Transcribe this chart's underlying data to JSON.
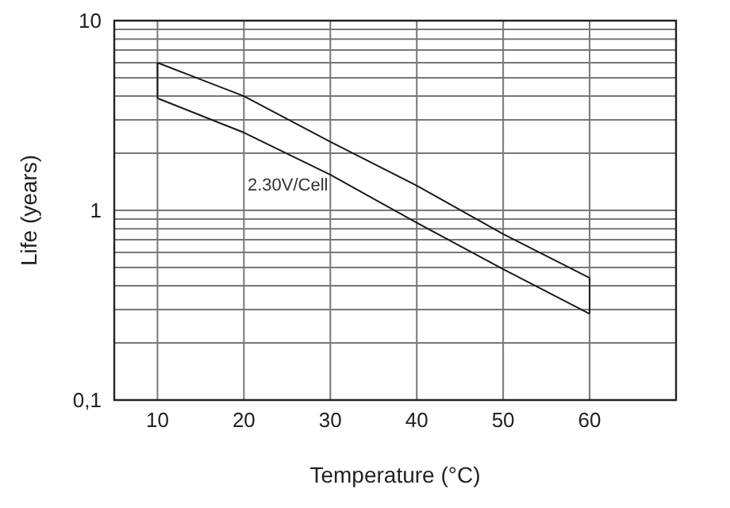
{
  "chart_data": {
    "type": "line",
    "xlabel": "Temperature (°C)",
    "ylabel": "Life (years)",
    "x": [
      10,
      20,
      30,
      40,
      50,
      60
    ],
    "series": [
      {
        "color": "#1a1a1a",
        "values": [
          6.0,
          4.0,
          2.3,
          1.35,
          0.75,
          0.44
        ]
      },
      {
        "color": "#1a1a1a",
        "values": [
          3.9,
          2.57,
          1.54,
          0.86,
          0.49,
          0.285
        ]
      }
    ],
    "log": "y",
    "xlim": [
      5,
      70
    ],
    "xticks": [
      10,
      20,
      30,
      40,
      50,
      60
    ],
    "ylim": [
      0.1,
      10
    ],
    "yticks": [
      {
        "value": 0.1,
        "label": "0,1"
      },
      {
        "value": 0.2,
        "label": null
      },
      {
        "value": 0.3,
        "label": null
      },
      {
        "value": 0.4,
        "label": null
      },
      {
        "value": 0.5,
        "label": null
      },
      {
        "value": 0.6,
        "label": null
      },
      {
        "value": 0.7,
        "label": null
      },
      {
        "value": 0.8,
        "label": null
      },
      {
        "value": 0.9,
        "label": null
      },
      1,
      {
        "value": 2,
        "label": null
      },
      {
        "value": 3,
        "label": null
      },
      {
        "value": 4,
        "label": null
      },
      {
        "value": 5,
        "label": null
      },
      {
        "value": 6,
        "label": null
      },
      {
        "value": 7,
        "label": null
      },
      {
        "value": 8,
        "label": null
      },
      {
        "value": 9,
        "label": null
      },
      10
    ],
    "grid": true,
    "legend": false,
    "marker": "none",
    "line_style": "solid",
    "annotations": [
      "2.30V/Cell"
    ]
  }
}
